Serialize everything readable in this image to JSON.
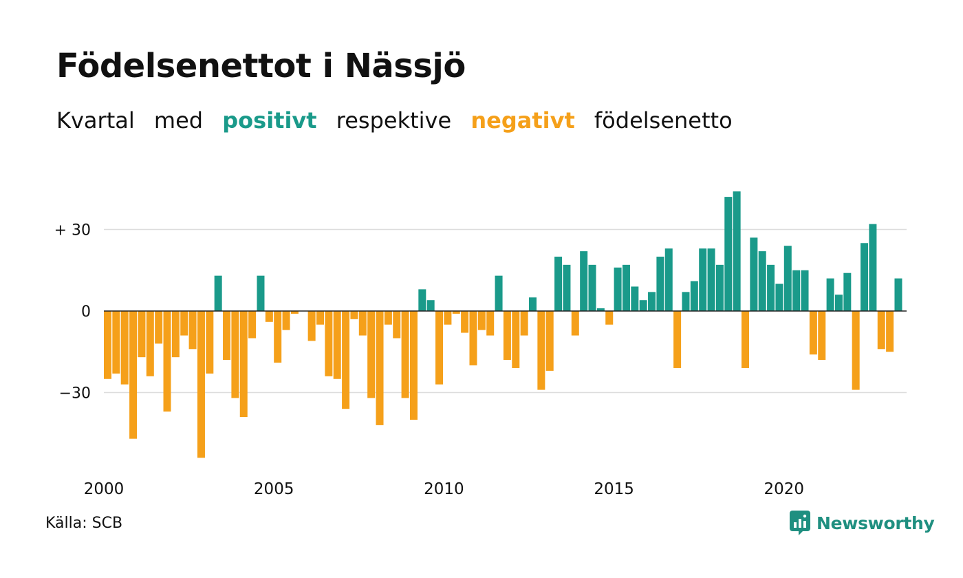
{
  "title": "Födelsenettot i Nässjö",
  "subtitle": {
    "w1": "Kvartal",
    "w2": "med",
    "positive_word": "positivt",
    "w3": "respektive",
    "negative_word": "negativt",
    "w4": "födelsenetto"
  },
  "source": "Källa: SCB",
  "brand": "Newsworthy",
  "colors": {
    "positive": "#1a9a8a",
    "negative": "#f5a01a",
    "brand": "#1f8f80",
    "grid": "#dddddd"
  },
  "icons": {
    "brand_logo": "newsworthy-chart-bubble-icon"
  },
  "chart_data": {
    "type": "bar",
    "x_start": "2000 Q1",
    "frequency": "quarterly",
    "x_tick_labels": [
      "2000",
      "2005",
      "2010",
      "2015",
      "2020"
    ],
    "y_tick_labels": [
      "+ 30",
      "0",
      "−30"
    ],
    "y_ticks": [
      30,
      0,
      -30
    ],
    "ylim": [
      -55,
      45
    ],
    "grid": true,
    "values": [
      -25,
      -23,
      -27,
      -47,
      -17,
      -24,
      -12,
      -37,
      -17,
      -9,
      -14,
      -54,
      -23,
      13,
      -18,
      -32,
      -39,
      -10,
      13,
      -4,
      -19,
      -7,
      -1,
      0,
      -11,
      -5,
      -24,
      -25,
      -36,
      -3,
      -9,
      -32,
      -42,
      -5,
      -10,
      -32,
      -40,
      8,
      4,
      -27,
      -5,
      -1,
      -8,
      -20,
      -7,
      -9,
      13,
      -18,
      -21,
      -9,
      5,
      -29,
      -22,
      20,
      17,
      -9,
      22,
      17,
      1,
      -5,
      16,
      17,
      9,
      4,
      7,
      20,
      23,
      -21,
      7,
      11,
      23,
      23,
      17,
      42,
      44,
      -21,
      27,
      22,
      17,
      10,
      24,
      15,
      15,
      -16,
      -18,
      12,
      6,
      14,
      -29,
      25,
      32,
      -14,
      -15,
      12
    ]
  }
}
